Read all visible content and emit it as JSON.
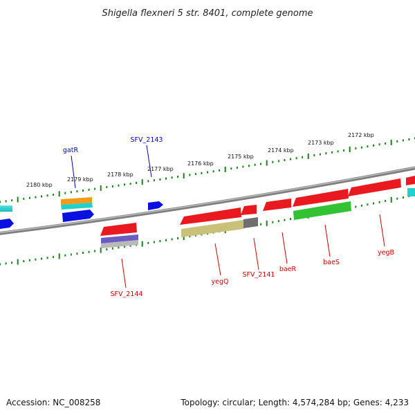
{
  "title": "Shigella flexneri 5 str. 8401, complete genome",
  "footer": {
    "accession": "Accession: NC_008258",
    "summary": "Topology: circular; Length: 4,574,284 bp; Genes: 4,233"
  },
  "colors": {
    "backbone": "#8c8c8c",
    "ticks": "#1e7d1e",
    "forward_label": "#0000cc",
    "reverse_label": "#cc0000",
    "red_gene": "#e8191f",
    "blue_gene": "#0a10e0",
    "orange_gene": "#f29a1a",
    "cyan_gene": "#22d1cc",
    "green_gene": "#33c233",
    "olive_gene": "#c9c07a",
    "purple_gene": "#6a5cc0",
    "gray_gene": "#6f6f6f"
  },
  "scale_labels": [
    "2180 kbp",
    "2179 kbp",
    "2178 kbp",
    "2177 kbp",
    "2176 kbp",
    "2175 kbp",
    "2174 kbp",
    "2173 kbp",
    "2172 kbp"
  ],
  "gene_labels": {
    "forward": [
      "gatR",
      "SFV_2143"
    ],
    "reverse": [
      "SFV_2144",
      "yegQ",
      "SFV_2141",
      "baeR",
      "baeS",
      "yegB"
    ]
  }
}
